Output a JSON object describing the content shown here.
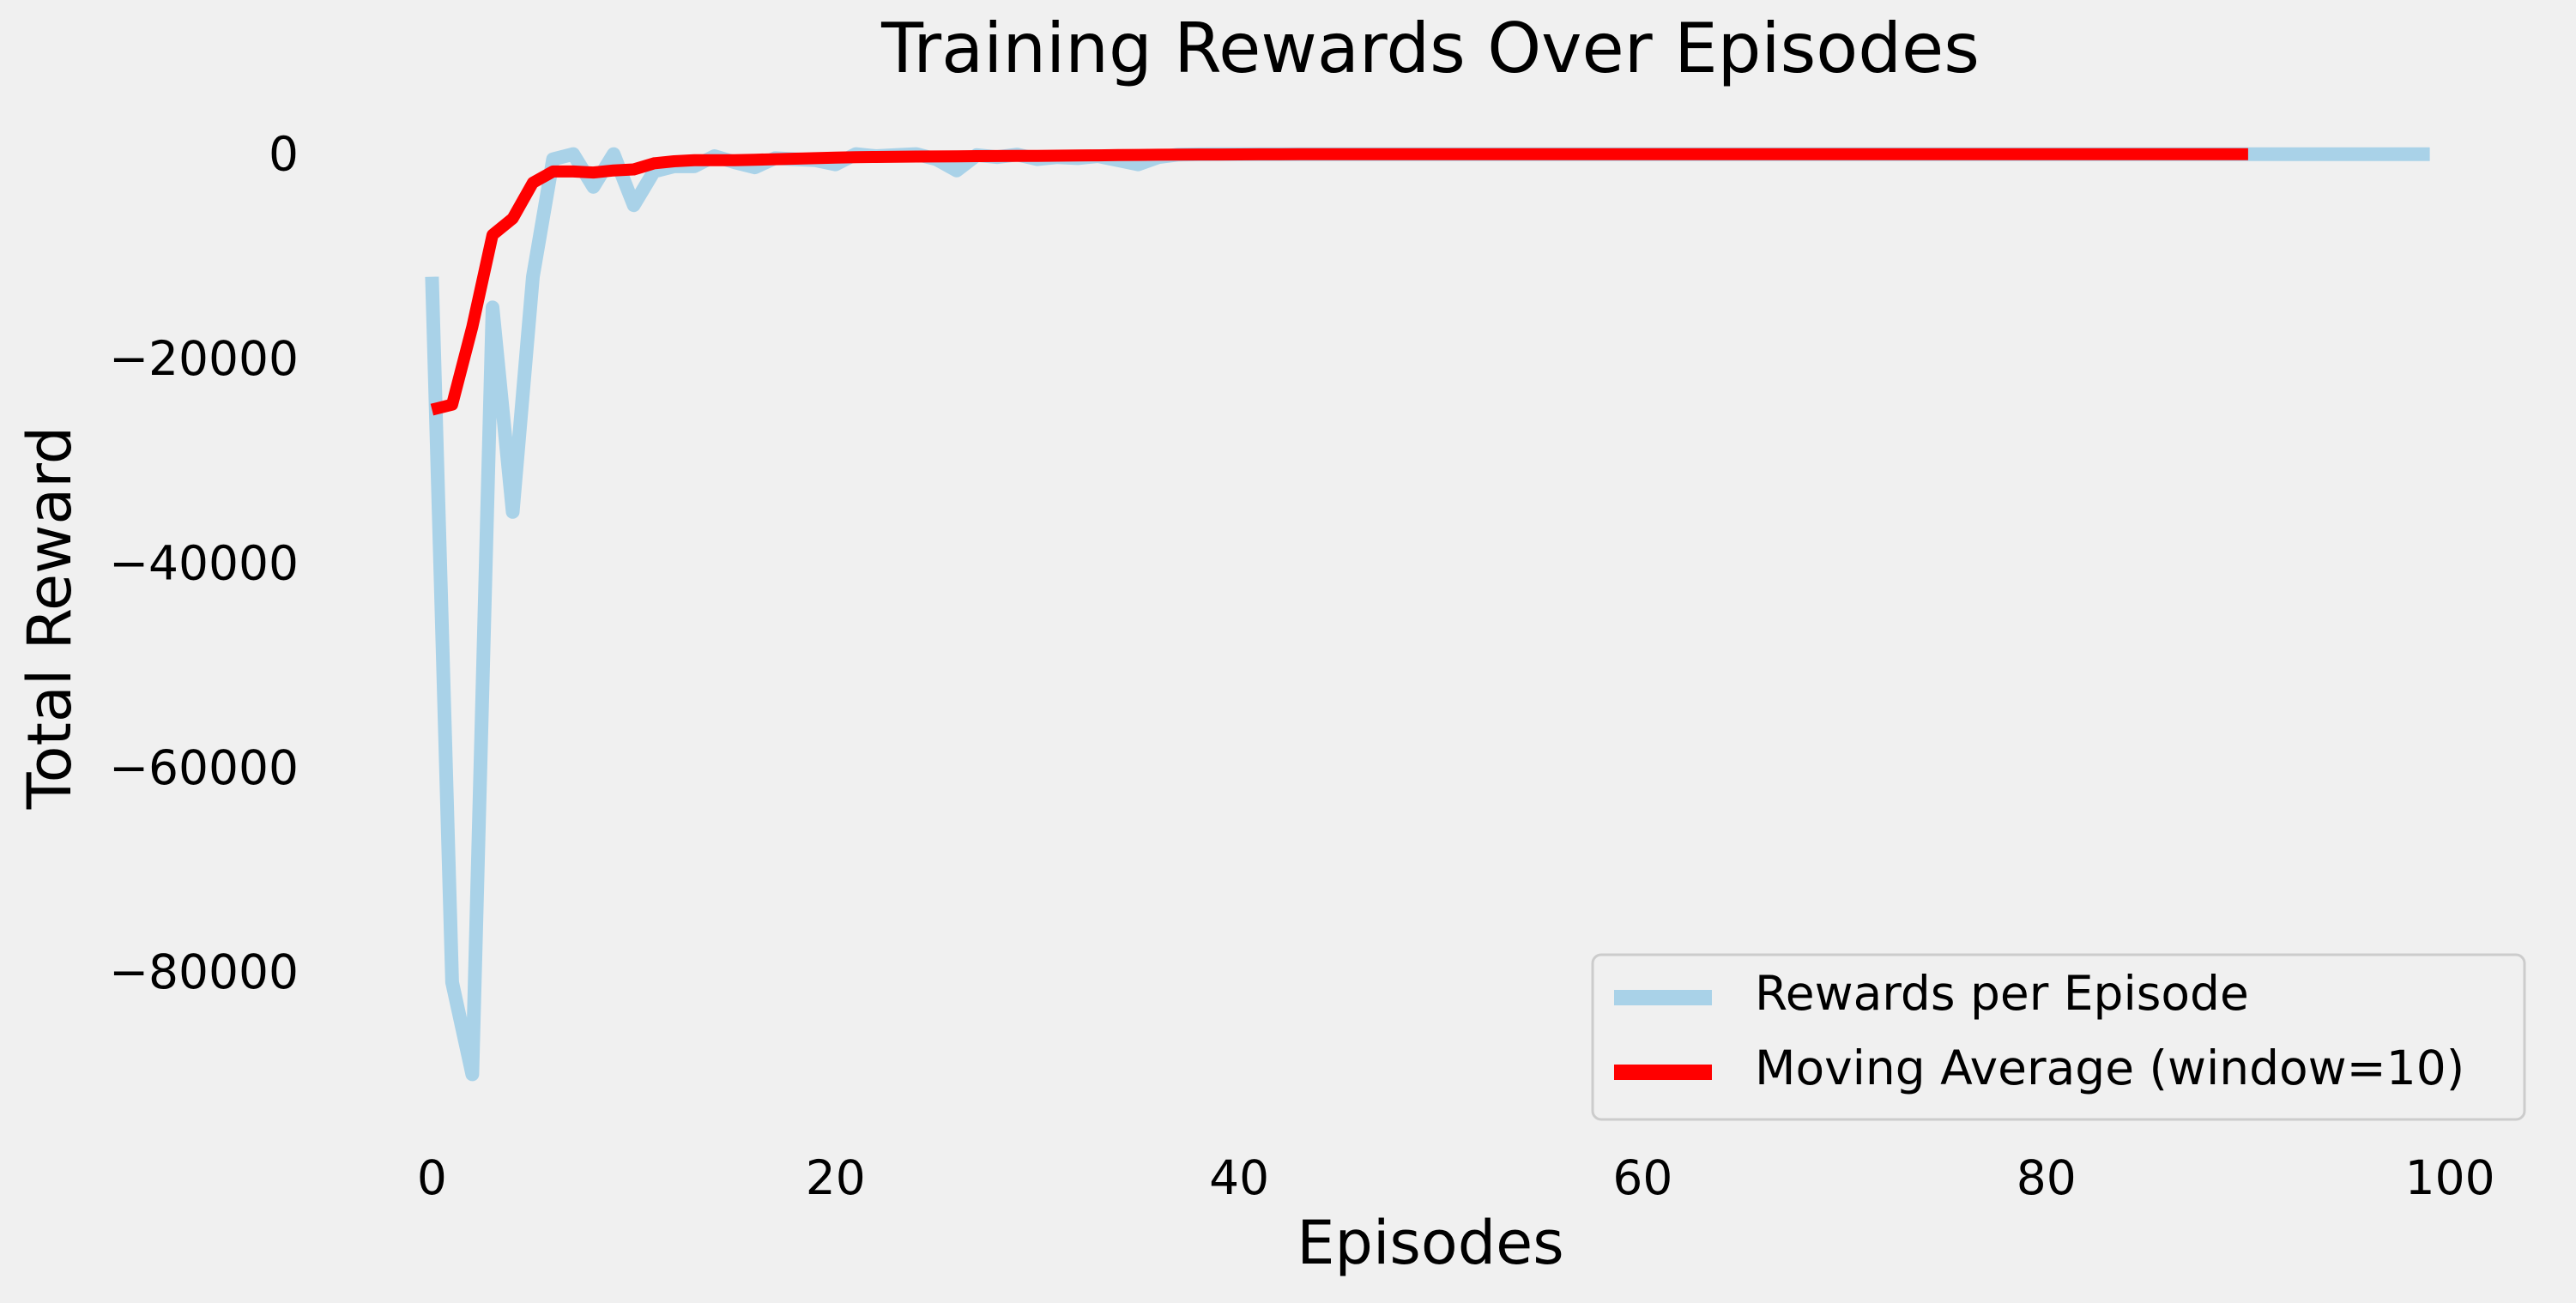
{
  "chart_data": {
    "type": "line",
    "title": "Training Rewards Over Episodes",
    "xlabel": "Episodes",
    "ylabel": "Total Reward",
    "xlim": [
      -4.95,
      103.95
    ],
    "ylim": [
      -94500,
      4500
    ],
    "x_ticks": [
      0,
      20,
      40,
      60,
      80,
      100
    ],
    "x_tick_labels": [
      "0",
      "20",
      "40",
      "60",
      "80",
      "100"
    ],
    "y_ticks": [
      0,
      -20000,
      -40000,
      -60000,
      -80000
    ],
    "y_tick_labels": [
      "0",
      "−20000",
      "−40000",
      "−60000",
      "−80000"
    ],
    "grid": false,
    "legend_position": "lower-right",
    "series": [
      {
        "name": "Rewards per Episode",
        "color": "#a9d2e8",
        "x_start": 0,
        "values": [
          -12000,
          -81000,
          -90000,
          -15000,
          -35000,
          -12000,
          -500,
          0,
          -3200,
          0,
          -5000,
          -1700,
          -1200,
          -1200,
          -200,
          -800,
          -1300,
          -400,
          -500,
          -600,
          -1000,
          0,
          -200,
          -100,
          0,
          -500,
          -1600,
          -100,
          -300,
          -50,
          -500,
          -300,
          -400,
          -200,
          -600,
          -1000,
          -300,
          -50,
          -20,
          -10,
          -10,
          -5,
          -5,
          -5,
          -5,
          -5,
          -5,
          -5,
          -5,
          -5,
          -5,
          -5,
          -5,
          -5,
          -5,
          -5,
          -5,
          -5,
          -5,
          -5,
          -5,
          -5,
          -5,
          -5,
          -5,
          -5,
          -5,
          -5,
          -5,
          -5,
          -5,
          -5,
          -5,
          -5,
          -5,
          -5,
          -5,
          -5,
          -5,
          -5,
          -5,
          -5,
          -5,
          -5,
          -5,
          -5,
          -5,
          -5,
          -5,
          -5,
          -5,
          -5,
          -5,
          -5,
          -5,
          -5,
          -5,
          -5,
          -5,
          -5
        ]
      },
      {
        "name": "Moving Average (window=10)",
        "color": "#ff0000",
        "x_start": 0,
        "values": [
          -25000,
          -24500,
          -16900,
          -7900,
          -6300,
          -2800,
          -1700,
          -1700,
          -1800,
          -1600,
          -1500,
          -900,
          -700,
          -600,
          -600,
          -600,
          -550,
          -500,
          -450,
          -400,
          -350,
          -300,
          -280,
          -260,
          -240,
          -230,
          -220,
          -200,
          -190,
          -180,
          -170,
          -160,
          -140,
          -120,
          -100,
          -80,
          -60,
          -50,
          -40,
          -35,
          -30,
          -25,
          -20,
          -15,
          -10,
          -10,
          -10,
          -10,
          -10,
          -10,
          -10,
          -10,
          -10,
          -10,
          -10,
          -10,
          -10,
          -10,
          -10,
          -10,
          -10,
          -10,
          -10,
          -10,
          -10,
          -10,
          -10,
          -10,
          -10,
          -10,
          -10,
          -10,
          -10,
          -10,
          -10,
          -10,
          -10,
          -10,
          -10,
          -10,
          -10,
          -10,
          -10,
          -10,
          -10,
          -10,
          -10,
          -10,
          -10,
          -10,
          -10
        ]
      }
    ]
  }
}
